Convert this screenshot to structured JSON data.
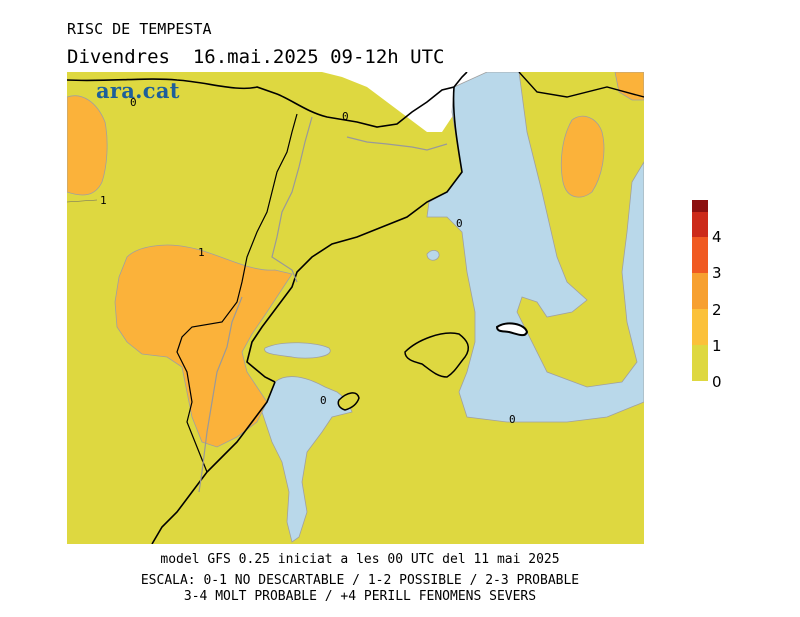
{
  "title_line1": "RISC DE TEMPESTA",
  "title_line2": "Divendres  16.mai.2025 09-12h UTC",
  "logo_text": "ara.cat",
  "contour_labels": [
    "0",
    "0",
    "0",
    "0",
    "0",
    "1",
    "1"
  ],
  "legend": {
    "levels": [
      "0",
      "1",
      "2",
      "3",
      "4"
    ],
    "colors": [
      "#ded840",
      "#fbc13a",
      "#f7a030",
      "#f05a22",
      "#cc2a1a",
      "#8c1010"
    ]
  },
  "footer": {
    "line1": "model GFS 0.25 iniciat a les 00 UTC del 11 mai 2025",
    "line2": "ESCALA: 0-1 NO DESCARTABLE / 1-2 POSSIBLE / 2-3 PROBABLE",
    "line3": "3-4 MOLT PROBABLE / +4 PERILL FENOMENS SEVERS"
  },
  "map_colors": {
    "land_low": "#ded840",
    "risk_1_2": "#fbb23a",
    "sea_no_risk": "#b9d8ea",
    "masked": "#ffffff"
  }
}
